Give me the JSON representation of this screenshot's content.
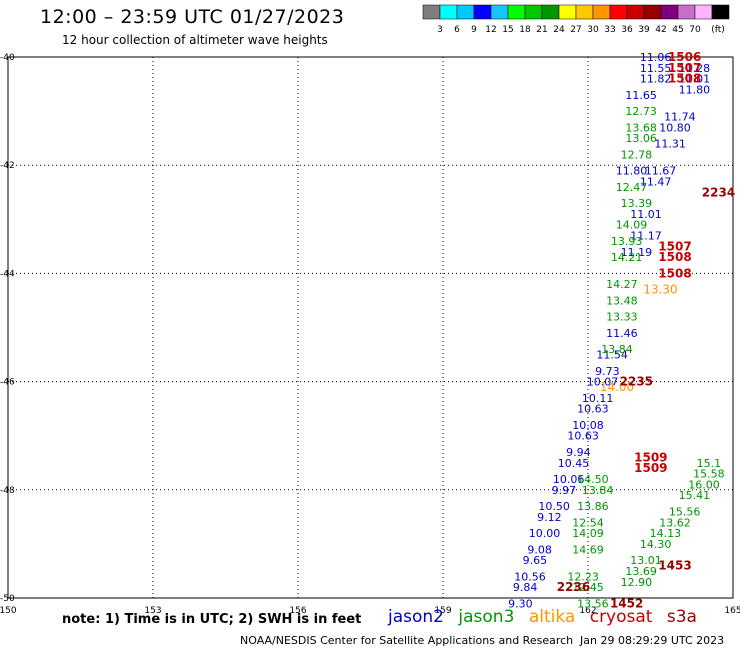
{
  "header": {
    "title": "12:00 – 23:59 UTC 01/27/2023",
    "subtitle": "12 hour collection of altimeter wave heights"
  },
  "color_scale": {
    "colors": [
      "#7f7f7f",
      "#00ffff",
      "#00c8ff",
      "#0000ff",
      "#14c8ff",
      "#00ff00",
      "#00c800",
      "#009600",
      "#ffff00",
      "#ffc800",
      "#ff9600",
      "#ff0000",
      "#c80000",
      "#960000",
      "#7f007f",
      "#c86ec8",
      "#ffb4ff",
      "#000000"
    ],
    "labels": [
      "3",
      "6",
      "9",
      "12",
      "15",
      "18",
      "21",
      "24",
      "27",
      "30",
      "33",
      "36",
      "39",
      "42",
      "45",
      "70"
    ],
    "unit": "(ft)"
  },
  "axes": {
    "x_labels": [
      "150",
      "153",
      "156",
      "159",
      "162",
      "165"
    ],
    "y_labels": [
      "-40",
      "-42",
      "-44",
      "-46",
      "-48",
      "-50"
    ]
  },
  "note": "note:  1) Time is in UTC;  2) SWH is in feet",
  "legend": [
    {
      "name": "jason2",
      "color": "#0000c8"
    },
    {
      "name": "jason3",
      "color": "#009600"
    },
    {
      "name": "altika",
      "color": "#ff9600"
    },
    {
      "name": "cryosat",
      "color": "#c80000"
    },
    {
      "name": "s3a",
      "color": "#960000"
    }
  ],
  "footer": {
    "center": "NOAA/NESDIS Center for Satellite Applications and Research",
    "timestamp": "Jan 29 08:29:29 UTC 2023"
  },
  "chart_data": {
    "type": "scatter",
    "title": "12:00 – 23:59 UTC 01/27/2023",
    "subtitle": "12 hour collection of altimeter wave heights",
    "xlim": [
      150,
      165
    ],
    "ylim": [
      -50,
      -40
    ],
    "grid": true,
    "x_ticks": [
      150,
      153,
      156,
      159,
      162,
      165
    ],
    "y_ticks": [
      -40,
      -42,
      -44,
      -46,
      -48,
      -50
    ],
    "series": [
      {
        "name": "jason2",
        "color": "#0000c8",
        "points": [
          {
            "x": 163.4,
            "y": -40.0,
            "label": "11.06"
          },
          {
            "x": 163.4,
            "y": -40.2,
            "label": "11.55"
          },
          {
            "x": 163.4,
            "y": -40.4,
            "label": "11.82"
          },
          {
            "x": 164.2,
            "y": -40.2,
            "label": "11.28"
          },
          {
            "x": 164.2,
            "y": -40.4,
            "label": "11.01"
          },
          {
            "x": 164.2,
            "y": -40.6,
            "label": "11.80"
          },
          {
            "x": 163.1,
            "y": -40.7,
            "label": "11.65"
          },
          {
            "x": 163.9,
            "y": -41.1,
            "label": "11.74"
          },
          {
            "x": 163.8,
            "y": -41.3,
            "label": "10.80"
          },
          {
            "x": 163.7,
            "y": -41.6,
            "label": "11.31"
          },
          {
            "x": 163.5,
            "y": -42.1,
            "label": "11.67"
          },
          {
            "x": 163.4,
            "y": -42.3,
            "label": "11.47"
          },
          {
            "x": 162.9,
            "y": -42.1,
            "label": "11.80"
          },
          {
            "x": 163.2,
            "y": -42.9,
            "label": "11.01"
          },
          {
            "x": 163.2,
            "y": -43.3,
            "label": "11.17"
          },
          {
            "x": 163.0,
            "y": -43.6,
            "label": "11.19"
          },
          {
            "x": 162.7,
            "y": -45.1,
            "label": "11.46"
          },
          {
            "x": 162.5,
            "y": -45.5,
            "label": "11.54"
          },
          {
            "x": 162.4,
            "y": -45.8,
            "label": "9.73"
          },
          {
            "x": 162.3,
            "y": -46.0,
            "label": "10.07"
          },
          {
            "x": 162.2,
            "y": -46.3,
            "label": "10.11"
          },
          {
            "x": 162.1,
            "y": -46.5,
            "label": "10.63"
          },
          {
            "x": 162.0,
            "y": -46.8,
            "label": "10.08"
          },
          {
            "x": 161.9,
            "y": -47.0,
            "label": "10.63"
          },
          {
            "x": 161.8,
            "y": -47.3,
            "label": "9.94"
          },
          {
            "x": 161.7,
            "y": -47.5,
            "label": "10.45"
          },
          {
            "x": 161.6,
            "y": -47.8,
            "label": "10.06"
          },
          {
            "x": 161.5,
            "y": -48.0,
            "label": "9.97"
          },
          {
            "x": 161.3,
            "y": -48.3,
            "label": "10.50"
          },
          {
            "x": 161.2,
            "y": -48.5,
            "label": "9.12"
          },
          {
            "x": 161.1,
            "y": -48.8,
            "label": "10.00"
          },
          {
            "x": 161.0,
            "y": -49.1,
            "label": "9.08"
          },
          {
            "x": 160.9,
            "y": -49.3,
            "label": "9.65"
          },
          {
            "x": 160.8,
            "y": -49.6,
            "label": "10.56"
          },
          {
            "x": 160.7,
            "y": -49.8,
            "label": "9.84"
          },
          {
            "x": 160.6,
            "y": -50.1,
            "label": "9.30"
          }
        ]
      },
      {
        "name": "jason3",
        "color": "#009600",
        "points": [
          {
            "x": 163.1,
            "y": -41.0,
            "label": "12.73"
          },
          {
            "x": 163.1,
            "y": -41.3,
            "label": "13.68"
          },
          {
            "x": 163.1,
            "y": -41.5,
            "label": "13.06"
          },
          {
            "x": 163.0,
            "y": -41.8,
            "label": "12.78"
          },
          {
            "x": 162.9,
            "y": -42.4,
            "label": "12.47"
          },
          {
            "x": 163.0,
            "y": -42.7,
            "label": "13.39"
          },
          {
            "x": 162.9,
            "y": -43.1,
            "label": "14.09"
          },
          {
            "x": 162.8,
            "y": -43.4,
            "label": "13.93"
          },
          {
            "x": 162.8,
            "y": -43.7,
            "label": "14.21"
          },
          {
            "x": 162.7,
            "y": -44.2,
            "label": "14.27"
          },
          {
            "x": 162.7,
            "y": -44.5,
            "label": "13.48"
          },
          {
            "x": 162.7,
            "y": -44.8,
            "label": "13.33"
          },
          {
            "x": 162.6,
            "y": -45.4,
            "label": "13.84"
          },
          {
            "x": 162.1,
            "y": -47.8,
            "label": "14.50"
          },
          {
            "x": 162.2,
            "y": -48.0,
            "label": "13.84"
          },
          {
            "x": 162.1,
            "y": -48.3,
            "label": "13.86"
          },
          {
            "x": 162.0,
            "y": -48.6,
            "label": "12.54"
          },
          {
            "x": 162.0,
            "y": -48.8,
            "label": "14.09"
          },
          {
            "x": 162.0,
            "y": -49.1,
            "label": "14.69"
          },
          {
            "x": 161.9,
            "y": -49.6,
            "label": "12.23"
          },
          {
            "x": 162.0,
            "y": -49.8,
            "label": "12.45"
          },
          {
            "x": 162.1,
            "y": -50.1,
            "label": "13.56"
          },
          {
            "x": 164.5,
            "y": -47.5,
            "label": "15.1"
          },
          {
            "x": 164.5,
            "y": -47.7,
            "label": "15.58"
          },
          {
            "x": 164.4,
            "y": -47.9,
            "label": "16.00"
          },
          {
            "x": 164.2,
            "y": -48.1,
            "label": "15.41"
          },
          {
            "x": 164.0,
            "y": -48.4,
            "label": "15.56"
          },
          {
            "x": 163.8,
            "y": -48.6,
            "label": "13.62"
          },
          {
            "x": 163.6,
            "y": -48.8,
            "label": "14.13"
          },
          {
            "x": 163.4,
            "y": -49.0,
            "label": "14.30"
          },
          {
            "x": 163.2,
            "y": -49.3,
            "label": "13.01"
          },
          {
            "x": 163.1,
            "y": -49.5,
            "label": "13.69"
          },
          {
            "x": 163.0,
            "y": -49.7,
            "label": "12.90"
          }
        ]
      },
      {
        "name": "altika",
        "color": "#ff9600",
        "points": [
          {
            "x": 163.5,
            "y": -44.3,
            "label": "13.30"
          },
          {
            "x": 162.6,
            "y": -46.1,
            "label": "14.00"
          }
        ]
      },
      {
        "name": "cryosat",
        "color": "#c80000",
        "points": [
          {
            "x": 164.0,
            "y": -40.0,
            "label": "1506"
          },
          {
            "x": 164.0,
            "y": -40.2,
            "label": "1507"
          },
          {
            "x": 164.0,
            "y": -40.4,
            "label": "1508"
          },
          {
            "x": 163.8,
            "y": -43.5,
            "label": "1507"
          },
          {
            "x": 163.8,
            "y": -43.7,
            "label": "1508"
          },
          {
            "x": 163.8,
            "y": -44.0,
            "label": "1508"
          },
          {
            "x": 163.3,
            "y": -47.4,
            "label": "1509"
          },
          {
            "x": 163.3,
            "y": -47.6,
            "label": "1509"
          }
        ]
      },
      {
        "name": "s3a",
        "color": "#960000",
        "points": [
          {
            "x": 164.7,
            "y": -42.5,
            "label": "2234"
          },
          {
            "x": 163.0,
            "y": -46.0,
            "label": "2235"
          },
          {
            "x": 161.7,
            "y": -49.8,
            "label": "2236"
          },
          {
            "x": 163.8,
            "y": -49.4,
            "label": "1453"
          },
          {
            "x": 162.8,
            "y": -50.1,
            "label": "1452"
          }
        ]
      }
    ]
  }
}
